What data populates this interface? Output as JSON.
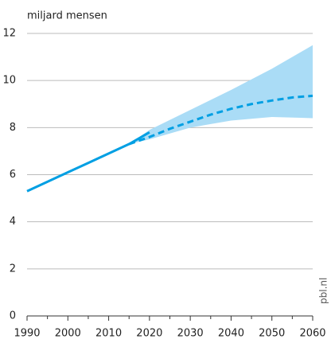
{
  "chart_data": {
    "type": "line",
    "y_label": "miljard mensen",
    "source": "pbl.nl",
    "xlim": [
      1990,
      2060
    ],
    "xticks": [
      1990,
      2000,
      2010,
      2020,
      2030,
      2040,
      2050,
      2060
    ],
    "xminor": [
      1995,
      2005,
      2015,
      2025,
      2035,
      2045,
      2055
    ],
    "ylim": [
      0,
      12
    ],
    "yticks": [
      0,
      2,
      4,
      6,
      8,
      10,
      12
    ],
    "grid": true,
    "series": [
      {
        "color": "#009fe3",
        "dash": false,
        "x": [
          1990,
          1995,
          2000,
          2005,
          2010,
          2015,
          2020
        ],
        "values": [
          5.3,
          5.7,
          6.1,
          6.5,
          6.9,
          7.3,
          7.8
        ]
      },
      {
        "color": "#009fe3",
        "dash": true,
        "x": [
          2015,
          2020,
          2025,
          2030,
          2035,
          2040,
          2045,
          2050,
          2055,
          2060
        ],
        "values": [
          7.3,
          7.6,
          7.95,
          8.25,
          8.55,
          8.8,
          9.0,
          9.15,
          9.28,
          9.35
        ]
      }
    ],
    "band": {
      "color": "#aadcf6",
      "x": [
        2015,
        2020,
        2030,
        2040,
        2050,
        2060
      ],
      "upper": [
        7.3,
        7.9,
        8.75,
        9.6,
        10.5,
        11.5
      ],
      "lower": [
        7.3,
        7.5,
        8.0,
        8.3,
        8.45,
        8.4
      ]
    }
  }
}
